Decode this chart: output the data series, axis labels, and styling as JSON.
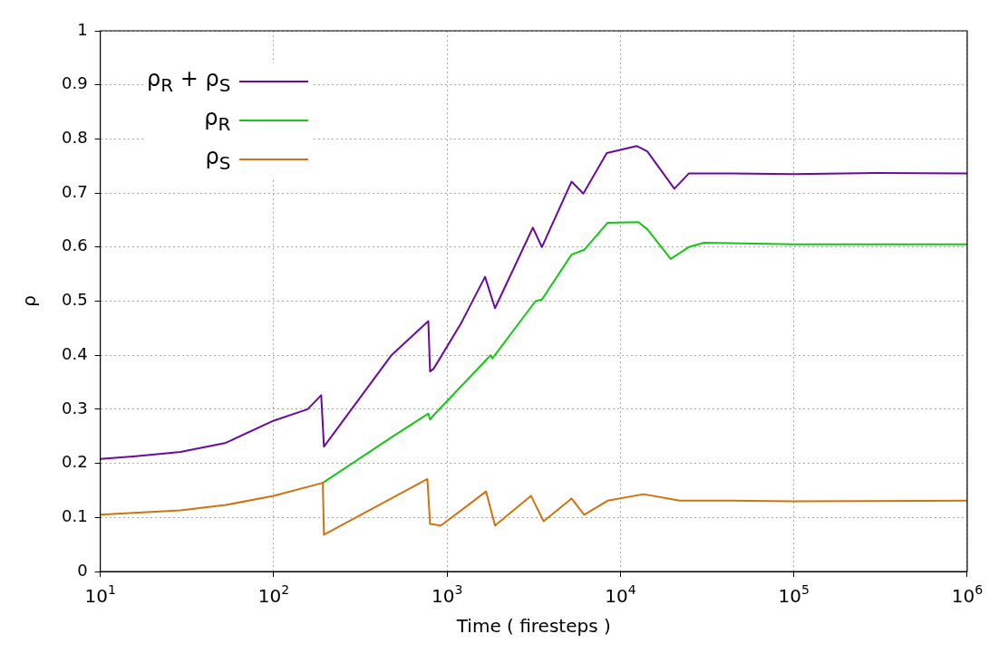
{
  "chart_data": {
    "type": "line",
    "xlabel": "Time ( firesteps )",
    "ylabel": "ρ",
    "log": "x",
    "grid": true,
    "legend": "top left",
    "line_style": "solid",
    "marker": "none",
    "xlim": [
      10,
      1000000
    ],
    "xticks": [
      {
        "value": 10,
        "label": "10$^{1}$"
      },
      {
        "value": 100,
        "label": "10$^{2}$"
      },
      {
        "value": 1000,
        "label": "10$^{3}$"
      },
      {
        "value": 10000,
        "label": "10$^{4}$"
      },
      {
        "value": 100000,
        "label": "10$^{5}$"
      },
      {
        "value": 1000000,
        "label": "10$^{6}$"
      }
    ],
    "ylim": [
      0,
      1
    ],
    "yticks": [
      0,
      0.1,
      0.2,
      0.3,
      0.4,
      0.5,
      0.6,
      0.7,
      0.8,
      0.9,
      1
    ],
    "series": [
      {
        "name": "ρ$_{R}$ + ρ$_{S}$",
        "color": "#6a0a9e",
        "x": [
          10,
          16,
          29,
          53,
          100,
          157,
          188,
          195,
          478,
          780,
          798,
          837,
          1200,
          1656,
          1891,
          3126,
          3524,
          5224,
          6110,
          8340,
          12400,
          14290,
          20470,
          24770,
          43400,
          100000,
          300000,
          1000000
        ],
        "values": [
          0.208,
          0.213,
          0.221,
          0.238,
          0.279,
          0.3,
          0.326,
          0.231,
          0.4,
          0.463,
          0.37,
          0.375,
          0.458,
          0.545,
          0.487,
          0.636,
          0.6,
          0.721,
          0.699,
          0.774,
          0.787,
          0.777,
          0.708,
          0.736,
          0.736,
          0.735,
          0.737,
          0.736
        ]
      },
      {
        "name": "ρ$_{R}$",
        "color": "#16c616",
        "x": [
          192,
          478,
          780,
          798,
          837,
          1782,
          1824,
          3236,
          3524,
          5224,
          6180,
          8440,
          12690,
          14290,
          19500,
          24770,
          30330,
          100000,
          1000000
        ],
        "values": [
          0.164,
          0.248,
          0.292,
          0.281,
          0.289,
          0.4,
          0.394,
          0.5,
          0.503,
          0.586,
          0.595,
          0.645,
          0.646,
          0.633,
          0.578,
          0.6,
          0.608,
          0.605,
          0.605
        ]
      },
      {
        "name": "ρ$_{S}$",
        "color": "#d2720e",
        "x": [
          10,
          29,
          53,
          100,
          192,
          195,
          770,
          798,
          922,
          1679,
          1891,
          3048,
          3606,
          5224,
          6180,
          8440,
          13600,
          21980,
          43400,
          100000,
          1000000
        ],
        "values": [
          0.105,
          0.113,
          0.123,
          0.14,
          0.164,
          0.068,
          0.171,
          0.088,
          0.085,
          0.148,
          0.085,
          0.14,
          0.093,
          0.135,
          0.105,
          0.131,
          0.143,
          0.131,
          0.131,
          0.13,
          0.131
        ]
      }
    ]
  }
}
